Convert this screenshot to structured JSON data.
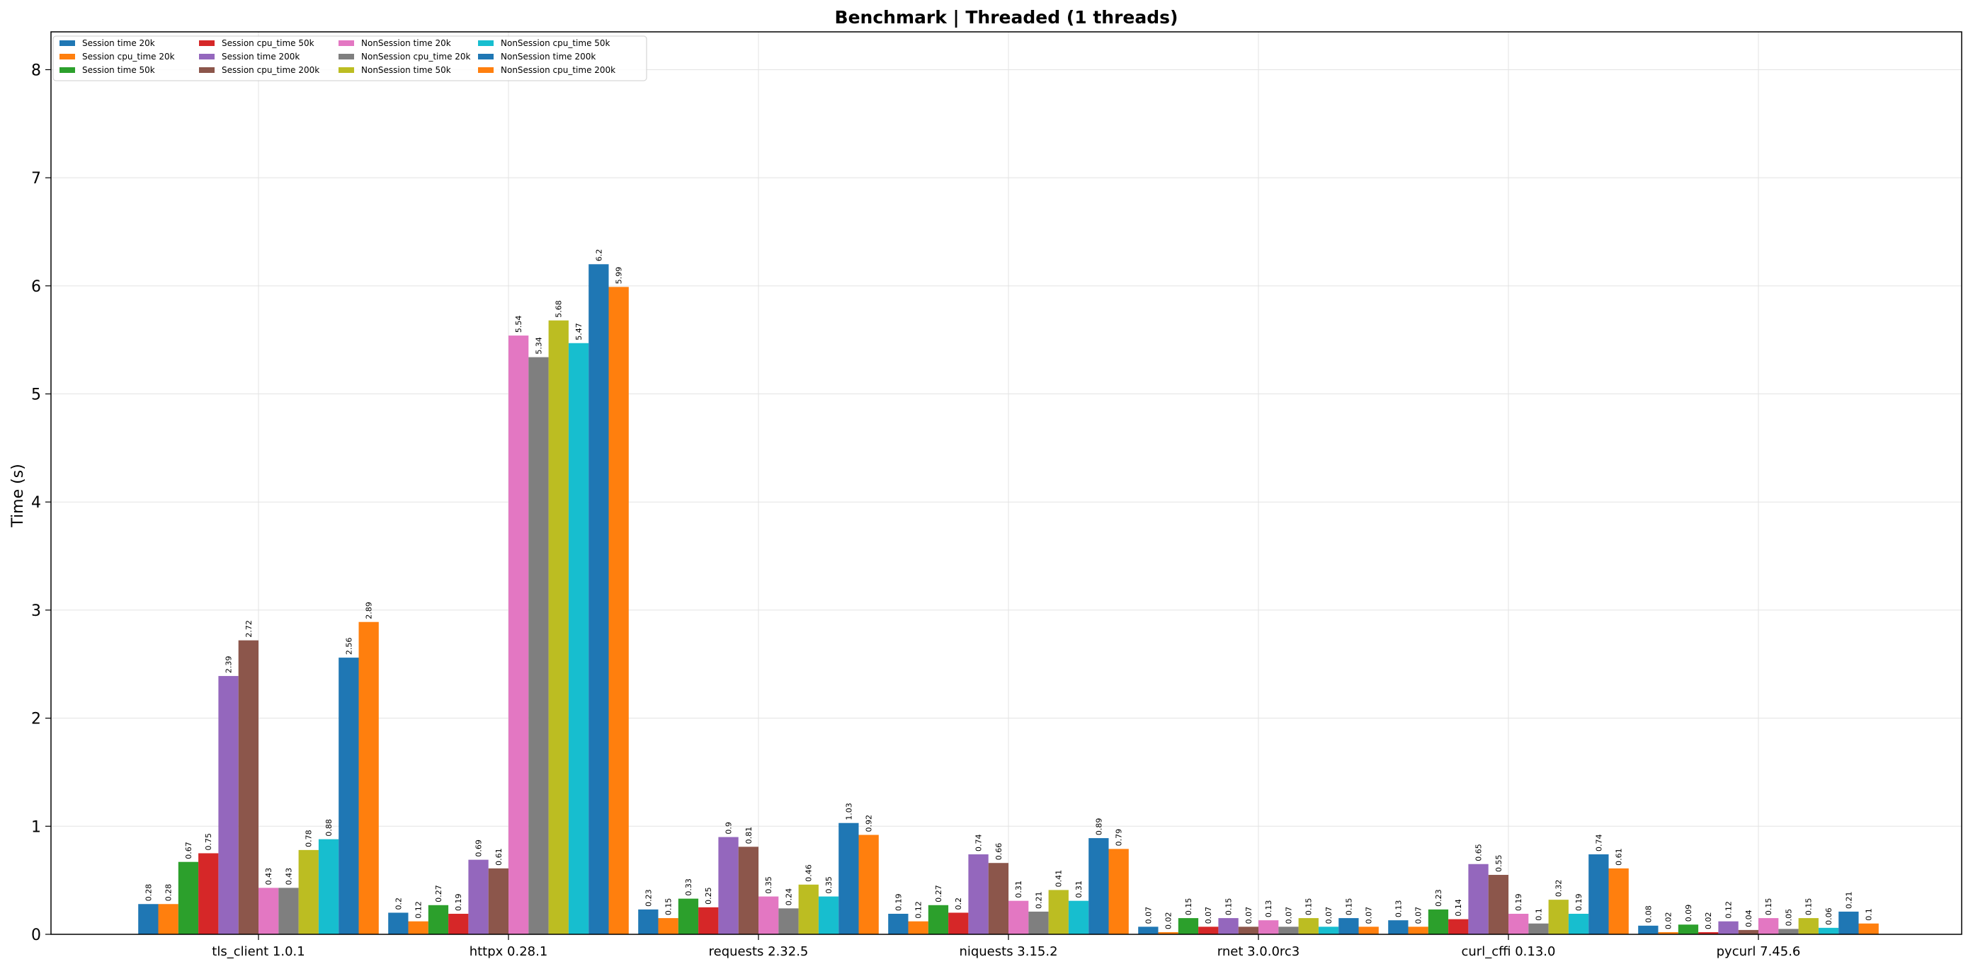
{
  "chart_data": {
    "type": "bar",
    "title": "Benchmark | Threaded (1 threads)",
    "xlabel": "",
    "ylabel": "Time (s)",
    "ylim": [
      0,
      8.35
    ],
    "yticks": [
      "0",
      "1",
      "2",
      "3",
      "4",
      "5",
      "6",
      "7",
      "8"
    ],
    "grid": true,
    "legend_position": "top-left",
    "categories": [
      "tls_client 1.0.1",
      "httpx 0.28.1",
      "requests 2.32.5",
      "niquests 3.15.2",
      "rnet 3.0.0rc3",
      "curl_cffi 0.13.0",
      "pycurl 7.45.6"
    ],
    "series": [
      {
        "name": "Session time 20k",
        "color": "#1f77b4",
        "values": [
          0.28,
          0.2,
          0.23,
          0.19,
          0.07,
          0.13,
          0.08
        ],
        "labels": [
          "0.28",
          "0.2",
          "0.23",
          "0.19",
          "0.07",
          "0.13",
          "0.08"
        ]
      },
      {
        "name": "Session cpu_time 20k",
        "color": "#ff7f0e",
        "values": [
          0.28,
          0.12,
          0.15,
          0.12,
          0.02,
          0.07,
          0.02
        ],
        "labels": [
          "0.28",
          "0.12",
          "0.15",
          "0.12",
          "0.02",
          "0.07",
          "0.02"
        ]
      },
      {
        "name": "Session time 50k",
        "color": "#2ca02c",
        "values": [
          0.67,
          0.27,
          0.33,
          0.27,
          0.15,
          0.23,
          0.09
        ],
        "labels": [
          "0.67",
          "0.27",
          "0.33",
          "0.27",
          "0.15",
          "0.23",
          "0.09"
        ]
      },
      {
        "name": "Session cpu_time 50k",
        "color": "#d62728",
        "values": [
          0.75,
          0.19,
          0.25,
          0.2,
          0.07,
          0.14,
          0.02
        ],
        "labels": [
          "0.75",
          "0.19",
          "0.25",
          "0.2",
          "0.07",
          "0.14",
          "0.02"
        ]
      },
      {
        "name": "Session time 200k",
        "color": "#9467bd",
        "values": [
          2.39,
          0.69,
          0.9,
          0.74,
          0.15,
          0.65,
          0.12
        ],
        "labels": [
          "2.39",
          "0.69",
          "0.9",
          "0.74",
          "0.15",
          "0.65",
          "0.12"
        ]
      },
      {
        "name": "Session cpu_time 200k",
        "color": "#8c564b",
        "values": [
          2.72,
          0.61,
          0.81,
          0.66,
          0.07,
          0.55,
          0.04
        ],
        "labels": [
          "2.72",
          "0.61",
          "0.81",
          "0.66",
          "0.07",
          "0.55",
          "0.04"
        ]
      },
      {
        "name": "NonSession time 20k",
        "color": "#e377c2",
        "values": [
          0.43,
          5.54,
          0.35,
          0.31,
          0.13,
          0.19,
          0.15
        ],
        "labels": [
          "0.43",
          "5.54",
          "0.35",
          "0.31",
          "0.13",
          "0.19",
          "0.15"
        ]
      },
      {
        "name": "NonSession cpu_time 20k",
        "color": "#7f7f7f",
        "values": [
          0.43,
          5.34,
          0.24,
          0.21,
          0.07,
          0.1,
          0.05
        ],
        "labels": [
          "0.43",
          "5.34",
          "0.24",
          "0.21",
          "0.07",
          "0.1",
          "0.05"
        ]
      },
      {
        "name": "NonSession time 50k",
        "color": "#bcbd22",
        "values": [
          0.78,
          5.68,
          0.46,
          0.41,
          0.15,
          0.32,
          0.15
        ],
        "labels": [
          "0.78",
          "5.68",
          "0.46",
          "0.41",
          "0.15",
          "0.32",
          "0.15"
        ]
      },
      {
        "name": "NonSession cpu_time 50k",
        "color": "#17becf",
        "values": [
          0.88,
          5.47,
          0.35,
          0.31,
          0.07,
          0.19,
          0.06
        ],
        "labels": [
          "0.88",
          "5.47",
          "0.35",
          "0.31",
          "0.07",
          "0.19",
          "0.06"
        ]
      },
      {
        "name": "NonSession time 200k",
        "color": "#1f77b4",
        "values": [
          2.56,
          6.2,
          1.03,
          0.89,
          0.15,
          0.74,
          0.21
        ],
        "labels": [
          "2.56",
          "6.2",
          "1.03",
          "0.89",
          "0.15",
          "0.74",
          "0.21"
        ]
      },
      {
        "name": "NonSession cpu_time 200k",
        "color": "#ff7f0e",
        "values": [
          2.89,
          5.99,
          0.92,
          0.79,
          0.07,
          0.61,
          0.1
        ],
        "labels": [
          "2.89",
          "5.99",
          "0.92",
          "0.79",
          "0.07",
          "0.61",
          "0.1"
        ]
      }
    ]
  }
}
